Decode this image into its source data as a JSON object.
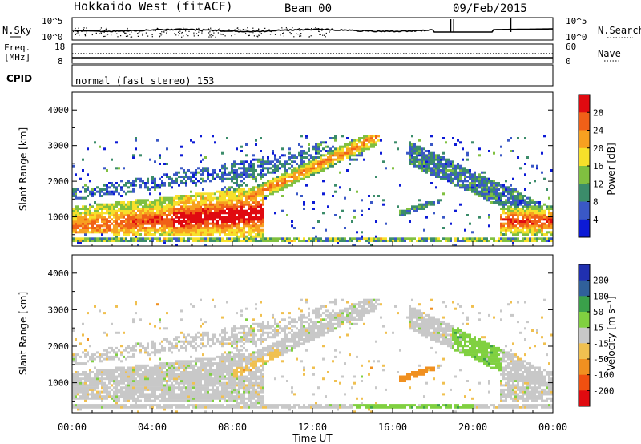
{
  "header": {
    "title": "Hokkaido West (fitACF)",
    "beam": "Beam 00",
    "date": "09/Feb/2015"
  },
  "noise_panel": {
    "left_label": "N.Sky",
    "right_label": "N.Search",
    "left_ticks": [
      "10^5",
      "10^0"
    ],
    "right_ticks": [
      "10^5",
      "10^0"
    ]
  },
  "freq_panel": {
    "left_label_line1": "Freq.",
    "left_label_line2": "[MHz]",
    "right_label": "Nave",
    "left_ticks": [
      "18",
      "8"
    ],
    "right_ticks": [
      "60",
      "0"
    ]
  },
  "cpid_panel": {
    "label": "CPID",
    "mode_text": "normal (fast stereo) 153"
  },
  "chart_data": [
    {
      "type": "heatmap",
      "name": "Power",
      "ylabel": "Slant Range [km]",
      "yticks": [
        "1000",
        "2000",
        "3000",
        "4000"
      ],
      "ylim": [
        180,
        4500
      ],
      "xlim_hours": [
        0,
        24
      ],
      "colorbar": {
        "label": "Power [dB]",
        "ticks": [
          "4",
          "8",
          "12",
          "16",
          "20",
          "24",
          "28"
        ],
        "colors": [
          "#0c1ad6",
          "#3a58c6",
          "#3b8c6a",
          "#80c040",
          "#f7e02a",
          "#f7a020",
          "#f06018",
          "#e00a10"
        ]
      }
    },
    {
      "type": "heatmap",
      "name": "Velocity",
      "ylabel": "Slant Range [km]",
      "yticks": [
        "1000",
        "2000",
        "3000",
        "4000"
      ],
      "ylim": [
        180,
        4500
      ],
      "xlim_hours": [
        0,
        24
      ],
      "colorbar": {
        "label": "Velocity [m s⁻¹]",
        "ticks": [
          "200",
          "100",
          "50",
          "15",
          "-15",
          "-50",
          "-100",
          "-200"
        ],
        "colors": [
          "#2030b0",
          "#30609a",
          "#3aa04a",
          "#80d040",
          "#c8c8c8",
          "#f0c050",
          "#f09020",
          "#f05010",
          "#e00a10"
        ]
      }
    }
  ],
  "x_axis": {
    "ticks": [
      "00:00",
      "04:00",
      "08:00",
      "12:00",
      "16:00",
      "20:00",
      "00:00"
    ],
    "label": "Time UT"
  }
}
